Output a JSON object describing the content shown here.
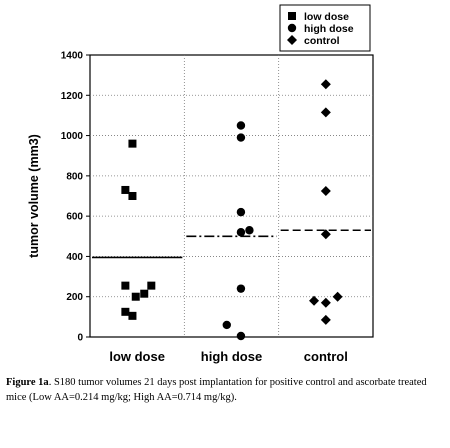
{
  "chart_data": {
    "type": "scatter",
    "ylabel": "tumor volume (mm3)",
    "ylim": [
      0,
      1400
    ],
    "yticks": [
      0,
      200,
      400,
      600,
      800,
      1000,
      1200,
      1400
    ],
    "categories": [
      "low dose",
      "high dose",
      "control"
    ],
    "grid": "dotted vertical separators and horizontal gridlines",
    "legend_position": "top-right",
    "legend": [
      {
        "label": "low dose",
        "marker": "square"
      },
      {
        "label": "high dose",
        "marker": "circle"
      },
      {
        "label": "control",
        "marker": "diamond"
      }
    ],
    "series": [
      {
        "name": "low dose",
        "marker": "square",
        "points": [
          {
            "dx": -0.1,
            "y": 960
          },
          {
            "dx": -0.25,
            "y": 730
          },
          {
            "dx": -0.1,
            "y": 700
          },
          {
            "dx": -0.25,
            "y": 255
          },
          {
            "dx": 0.3,
            "y": 255
          },
          {
            "dx": 0.15,
            "y": 215
          },
          {
            "dx": -0.03,
            "y": 200
          },
          {
            "dx": -0.25,
            "y": 125
          },
          {
            "dx": -0.1,
            "y": 105
          }
        ],
        "mean": 395,
        "mean_line_style": "solid"
      },
      {
        "name": "high dose",
        "marker": "circle",
        "points": [
          {
            "dx": 0.2,
            "y": 1050
          },
          {
            "dx": 0.2,
            "y": 990
          },
          {
            "dx": 0.2,
            "y": 620
          },
          {
            "dx": 0.38,
            "y": 530
          },
          {
            "dx": 0.2,
            "y": 520
          },
          {
            "dx": 0.2,
            "y": 240
          },
          {
            "dx": -0.1,
            "y": 60
          },
          {
            "dx": 0.2,
            "y": 5
          }
        ],
        "mean": 500,
        "mean_line_style": "dash-dot"
      },
      {
        "name": "control",
        "marker": "diamond",
        "points": [
          {
            "dx": 0.0,
            "y": 1255
          },
          {
            "dx": 0.0,
            "y": 1115
          },
          {
            "dx": 0.0,
            "y": 725
          },
          {
            "dx": 0.0,
            "y": 510
          },
          {
            "dx": 0.25,
            "y": 200
          },
          {
            "dx": -0.25,
            "y": 180
          },
          {
            "dx": 0.0,
            "y": 170
          },
          {
            "dx": 0.0,
            "y": 85
          }
        ],
        "mean": 530,
        "mean_line_style": "dashed"
      }
    ]
  },
  "caption": {
    "label": "Figure 1a",
    "text": ". S180 tumor volumes 21 days post implantation for positive control and ascorbate treated mice (Low AA=0.214 mg/kg; High AA=0.714 mg/kg)."
  }
}
